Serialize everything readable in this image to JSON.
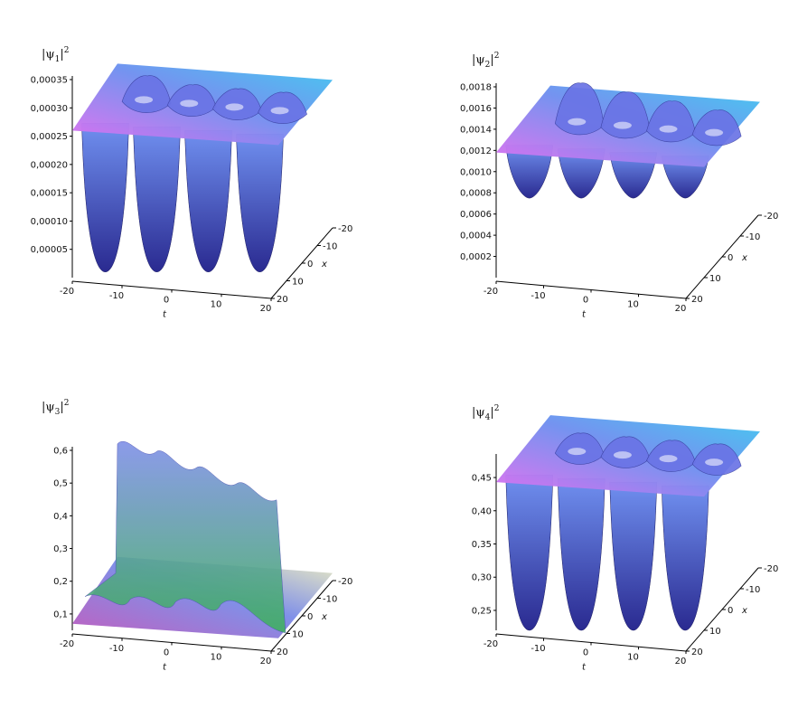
{
  "chart_data": [
    {
      "type": "surface",
      "title_main": "|ψ",
      "title_sub": "1",
      "title_tail": "|",
      "title_sup": "2",
      "xlabel": "t",
      "ylabel": "x",
      "xlim": [
        -20,
        20
      ],
      "ylim": [
        -20,
        20
      ],
      "zlim": [
        0,
        0.00035
      ],
      "x_ticks": [
        "-20",
        "-10",
        "0",
        "10",
        "20"
      ],
      "y_ticks": [
        "-20",
        "-10",
        "0",
        "10",
        "20"
      ],
      "z_ticks": [
        "0,00005",
        "0,00010",
        "0,00015",
        "0,00020",
        "0,00025",
        "0,00030",
        "0,00035"
      ],
      "z_tick_values": [
        5e-05,
        0.0001,
        0.00015,
        0.0002,
        0.00025,
        0.0003,
        0.00035
      ],
      "background_level": 0.00026,
      "peak_level": 0.00035,
      "dip_level": 1e-05,
      "shape": "dips-below",
      "colors": [
        "#e070f0",
        "#7090f0",
        "#40c8f0",
        "#2a2a90"
      ]
    },
    {
      "type": "surface",
      "title_main": "|ψ",
      "title_sub": "2",
      "title_tail": "|",
      "title_sup": "2",
      "xlabel": "t",
      "ylabel": "x",
      "xlim": [
        -20,
        20
      ],
      "ylim": [
        -20,
        20
      ],
      "zlim": [
        0,
        0.0018
      ],
      "x_ticks": [
        "-20",
        "-10",
        "0",
        "10",
        "20"
      ],
      "y_ticks": [
        "-20",
        "-10",
        "0",
        "10",
        "20"
      ],
      "z_ticks": [
        "0,0002",
        "0,0004",
        "0,0006",
        "0,0008",
        "0,0010",
        "0,0012",
        "0,0014",
        "0,0016",
        "0,0018"
      ],
      "z_tick_values": [
        0.0002,
        0.0004,
        0.0006,
        0.0008,
        0.001,
        0.0012,
        0.0014,
        0.0016,
        0.0018
      ],
      "background_level": 0.00118,
      "peak_level": 0.0018,
      "dip_level": 0.00075,
      "shape": "dips-below",
      "colors": [
        "#e070f0",
        "#7090f0",
        "#40c8f0",
        "#2a2a90"
      ]
    },
    {
      "type": "surface",
      "title_main": "|ψ",
      "title_sub": "3",
      "title_tail": "|",
      "title_sup": "2",
      "xlabel": "t",
      "ylabel": "x",
      "xlim": [
        -20,
        20
      ],
      "ylim": [
        -20,
        20
      ],
      "zlim": [
        0.05,
        0.6
      ],
      "x_ticks": [
        "-20",
        "-10",
        "0",
        "10",
        "20"
      ],
      "y_ticks": [
        "-20",
        "-10",
        "0",
        "10",
        "20"
      ],
      "z_ticks": [
        "0,1",
        "0,2",
        "0,3",
        "0,4",
        "0,5",
        "0,6"
      ],
      "z_tick_values": [
        0.1,
        0.2,
        0.3,
        0.4,
        0.5,
        0.6
      ],
      "background_level": 0.07,
      "peak_level": 0.62,
      "dip_level": 0.07,
      "shape": "wall-above",
      "colors": [
        "#c060c0",
        "#8090e8",
        "#f0f0c0",
        "#40b060"
      ]
    },
    {
      "type": "surface",
      "title_main": "|ψ",
      "title_sub": "4",
      "title_tail": "|",
      "title_sup": "2",
      "xlabel": "t",
      "ylabel": "x",
      "xlim": [
        -20,
        20
      ],
      "ylim": [
        -20,
        20
      ],
      "zlim": [
        0.22,
        0.48
      ],
      "x_ticks": [
        "-20",
        "-10",
        "0",
        "10",
        "20"
      ],
      "y_ticks": [
        "-20",
        "-10",
        "0",
        "10",
        "20"
      ],
      "z_ticks": [
        "0,25",
        "0,30",
        "0,35",
        "0,40",
        "0,45"
      ],
      "z_tick_values": [
        0.25,
        0.3,
        0.35,
        0.4,
        0.45
      ],
      "background_level": 0.443,
      "peak_level": 0.49,
      "dip_level": 0.22,
      "shape": "dips-below",
      "colors": [
        "#e070f0",
        "#7090f0",
        "#40c8f0",
        "#2a2a90"
      ]
    }
  ]
}
